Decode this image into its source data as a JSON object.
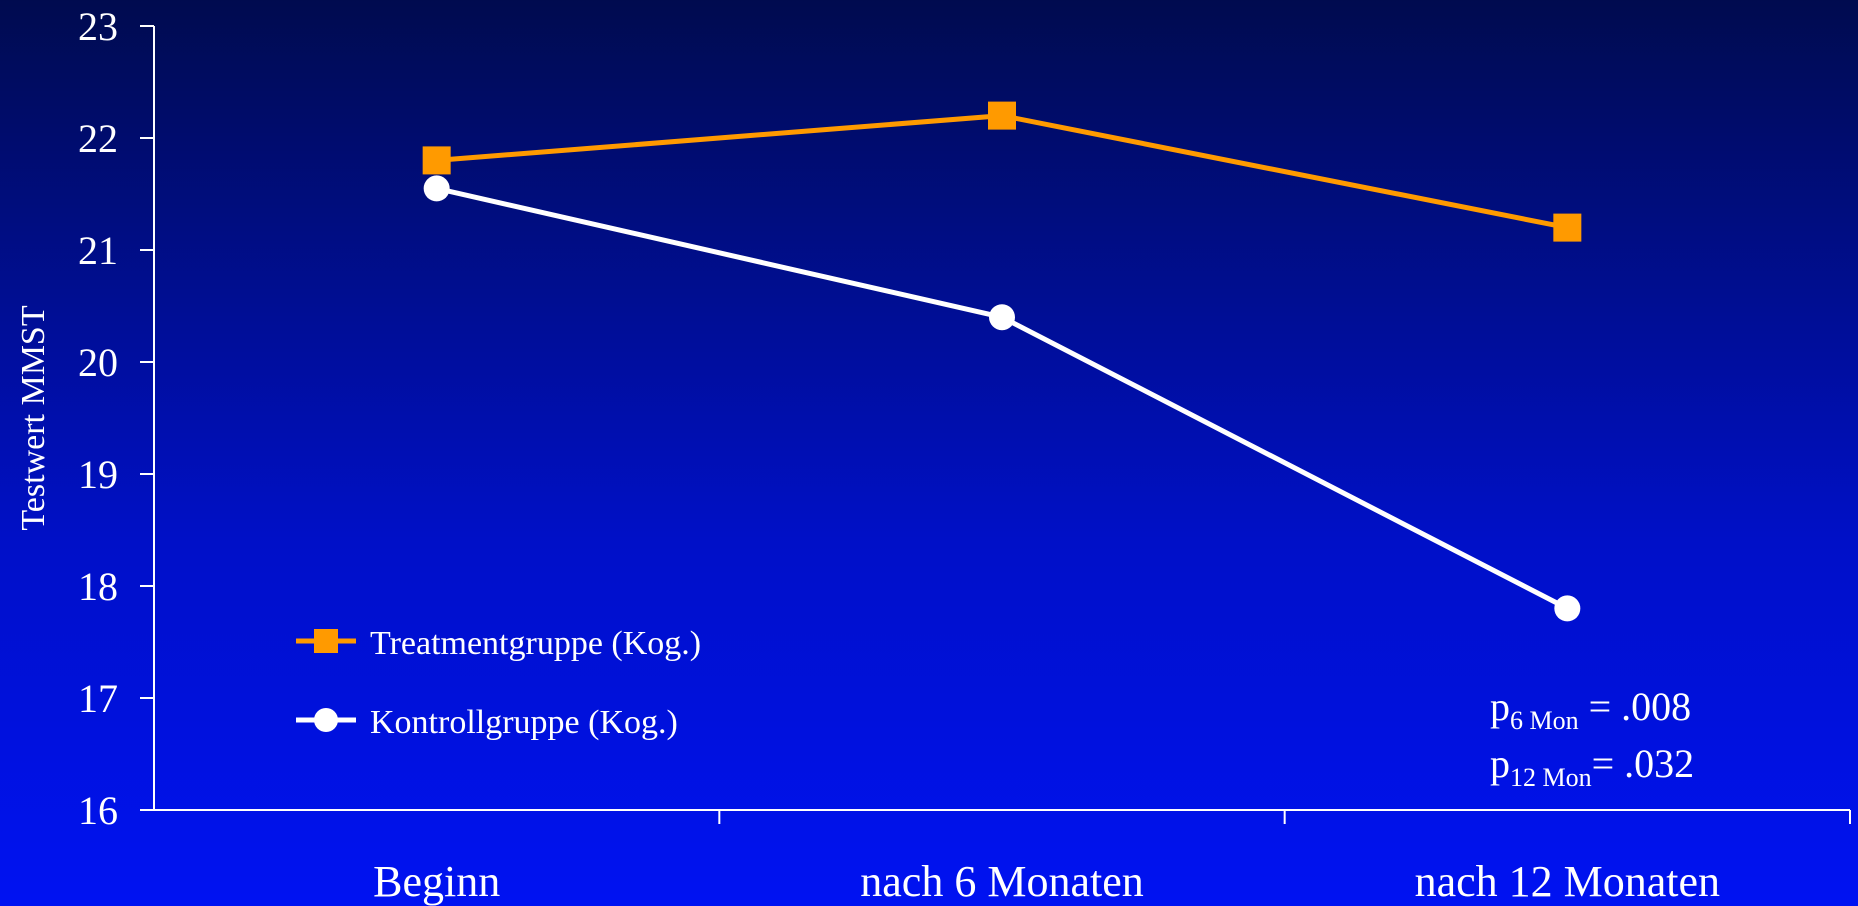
{
  "chart_data": {
    "type": "line",
    "title": "",
    "xlabel": "",
    "ylabel": "Testwert MMST",
    "categories": [
      "Beginn",
      "nach 6 Monaten",
      "nach 12 Monaten"
    ],
    "ylim": [
      16,
      23
    ],
    "yticks": [
      "16",
      "17",
      "18",
      "19",
      "20",
      "21",
      "22",
      "23"
    ],
    "grid": false,
    "legend_position": "bottom-left",
    "series": [
      {
        "name": "Treatmentgruppe (Kog.)",
        "values": [
          21.8,
          22.2,
          21.2
        ],
        "color": "#ff9a00",
        "marker": "square"
      },
      {
        "name": "Kontrollgruppe (Kog.)",
        "values": [
          21.55,
          20.4,
          17.8
        ],
        "color": "#ffffff",
        "marker": "circle"
      }
    ],
    "annotations": {
      "p6": {
        "base": "p",
        "sub": "6 Mon",
        "rest": " = .008"
      },
      "p12": {
        "base": "p",
        "sub": "12 Mon",
        "rest": "= .032"
      }
    }
  }
}
